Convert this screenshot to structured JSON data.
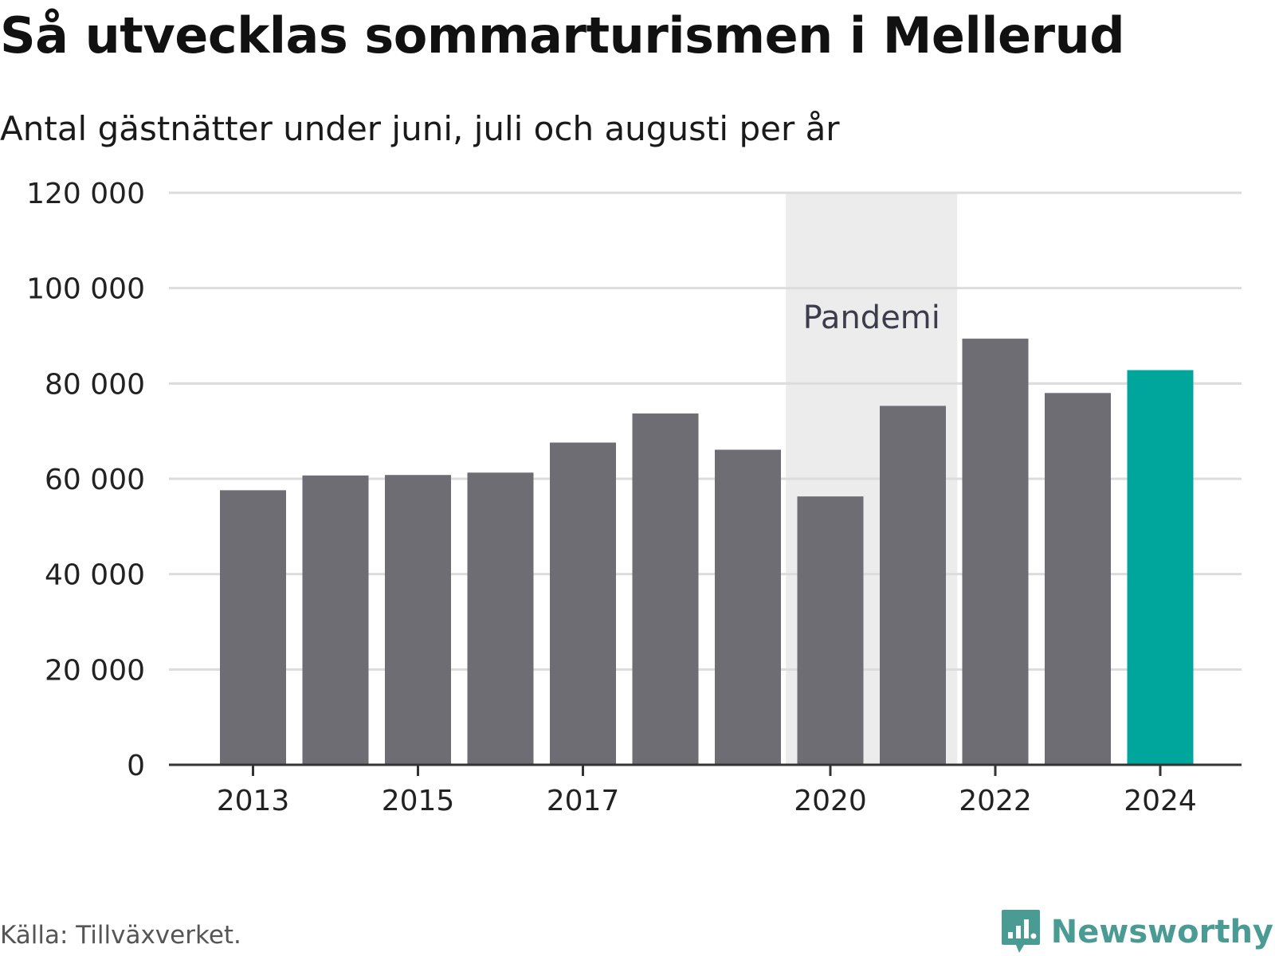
{
  "header": {
    "title": "Så utvecklas sommarturismen i Mellerud",
    "subtitle": "Antal gästnätter under juni, juli och augusti per år"
  },
  "footer": {
    "source": "Källa: Tillväxverket.",
    "brand": "Newsworthy"
  },
  "colors": {
    "bar": "#6e6d73",
    "highlight": "#00a69c",
    "band": "#ececec",
    "grid": "#dcdcdc",
    "axis": "#333333",
    "brand": "#4a9b94"
  },
  "chart_data": {
    "type": "bar",
    "title": "Så utvecklas sommarturismen i Mellerud",
    "subtitle": "Antal gästnätter under juni, juli och augusti per år",
    "categories": [
      "2013",
      "2014",
      "2015",
      "2016",
      "2017",
      "2018",
      "2019",
      "2020",
      "2021",
      "2022",
      "2023",
      "2024"
    ],
    "values": [
      57600,
      60700,
      60800,
      61300,
      67600,
      73700,
      66100,
      56300,
      75300,
      89400,
      78000,
      82800
    ],
    "highlight_category": "2024",
    "ylim": [
      0,
      120000
    ],
    "y_ticks": [
      0,
      20000,
      40000,
      60000,
      80000,
      100000,
      120000
    ],
    "y_tick_labels": [
      "0",
      "20 000",
      "40 000",
      "60 000",
      "80 000",
      "100 000",
      "120 000"
    ],
    "x_tick_labels": [
      "2013",
      "2015",
      "2017",
      "2020",
      "2022",
      "2024"
    ],
    "grid": true,
    "annotation": {
      "label": "Pandemi",
      "from": "2020",
      "to": "2021"
    },
    "xlabel": "",
    "ylabel": ""
  }
}
